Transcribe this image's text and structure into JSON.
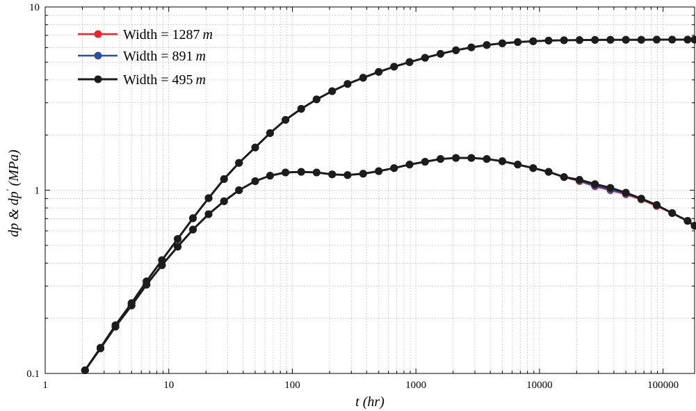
{
  "chart_data": {
    "type": "line",
    "xscale": "log",
    "yscale": "log",
    "xlim": [
      1,
      180000
    ],
    "ylim": [
      0.1,
      10
    ],
    "grid": true,
    "legend_position": "top-left",
    "xlabel_parts": {
      "var": "t",
      "unit": "(hr)"
    },
    "ylabel_parts": {
      "var": "dp & dp",
      "prime": "'",
      "unit": "(MPa)"
    },
    "x_ticks": [
      {
        "value": 1,
        "label": "1"
      },
      {
        "value": 10,
        "label": "10"
      },
      {
        "value": 100,
        "label": "100"
      },
      {
        "value": 1000,
        "label": "1000"
      },
      {
        "value": 10000,
        "label": "10000"
      },
      {
        "value": 100000,
        "label": "100000"
      }
    ],
    "y_ticks": [
      {
        "value": 0.1,
        "label": "0.1"
      },
      {
        "value": 1,
        "label": "1"
      },
      {
        "value": 10,
        "label": "10"
      }
    ],
    "x": [
      2.1,
      2.8,
      3.7,
      5,
      6.6,
      8.8,
      11.8,
      15.7,
      21,
      28,
      37,
      50,
      66,
      88,
      118,
      157,
      210,
      280,
      374,
      500,
      666,
      888,
      1185,
      1580,
      2107,
      2810,
      3747,
      5000,
      6666,
      8888,
      11850,
      15800,
      21070,
      28100,
      37470,
      50000,
      66600,
      88880,
      118500,
      158000,
      180000
    ],
    "series": [
      {
        "name": "Width = 1287",
        "unit_label": "m",
        "color": "#e8262b",
        "pressure": [
          0.104,
          0.138,
          0.183,
          0.242,
          0.318,
          0.415,
          0.542,
          0.703,
          0.905,
          1.15,
          1.41,
          1.71,
          2.05,
          2.42,
          2.78,
          3.13,
          3.47,
          3.8,
          4.11,
          4.42,
          4.72,
          5.0,
          5.28,
          5.55,
          5.8,
          6.02,
          6.2,
          6.33,
          6.43,
          6.5,
          6.55,
          6.58,
          6.6,
          6.61,
          6.62,
          6.62,
          6.62,
          6.63,
          6.63,
          6.63,
          6.63
        ],
        "derivative": [
          0.104,
          0.137,
          0.18,
          0.235,
          0.305,
          0.39,
          0.492,
          0.61,
          0.74,
          0.87,
          1.0,
          1.12,
          1.2,
          1.25,
          1.26,
          1.25,
          1.22,
          1.21,
          1.23,
          1.27,
          1.32,
          1.38,
          1.43,
          1.48,
          1.5,
          1.5,
          1.48,
          1.44,
          1.38,
          1.32,
          1.26,
          1.18,
          1.12,
          1.05,
          1.0,
          0.95,
          0.89,
          0.82,
          0.75,
          0.68,
          0.64
        ]
      },
      {
        "name": "Width = 891",
        "unit_label": "m",
        "color": "#2b4fa3",
        "pressure": [
          0.104,
          0.138,
          0.183,
          0.242,
          0.318,
          0.415,
          0.542,
          0.703,
          0.905,
          1.15,
          1.41,
          1.71,
          2.05,
          2.42,
          2.78,
          3.13,
          3.47,
          3.8,
          4.11,
          4.42,
          4.72,
          5.0,
          5.28,
          5.55,
          5.8,
          6.02,
          6.2,
          6.33,
          6.43,
          6.5,
          6.55,
          6.58,
          6.6,
          6.61,
          6.62,
          6.62,
          6.62,
          6.63,
          6.63,
          6.63,
          6.63
        ],
        "derivative": [
          0.104,
          0.137,
          0.18,
          0.235,
          0.305,
          0.39,
          0.492,
          0.61,
          0.74,
          0.87,
          1.0,
          1.12,
          1.2,
          1.25,
          1.26,
          1.25,
          1.22,
          1.21,
          1.23,
          1.27,
          1.32,
          1.38,
          1.43,
          1.48,
          1.5,
          1.5,
          1.48,
          1.44,
          1.38,
          1.32,
          1.26,
          1.18,
          1.13,
          1.06,
          1.01,
          0.96,
          0.9,
          0.83,
          0.75,
          0.68,
          0.64
        ]
      },
      {
        "name": "Width = 495",
        "unit_label": "m",
        "color": "#1c1c1c",
        "pressure": [
          0.104,
          0.138,
          0.183,
          0.242,
          0.318,
          0.415,
          0.542,
          0.703,
          0.905,
          1.15,
          1.41,
          1.71,
          2.05,
          2.42,
          2.78,
          3.13,
          3.47,
          3.8,
          4.11,
          4.42,
          4.72,
          5.0,
          5.28,
          5.55,
          5.8,
          6.02,
          6.2,
          6.33,
          6.43,
          6.5,
          6.55,
          6.58,
          6.6,
          6.61,
          6.62,
          6.62,
          6.62,
          6.63,
          6.63,
          6.63,
          6.63
        ],
        "derivative": [
          0.104,
          0.137,
          0.18,
          0.235,
          0.305,
          0.39,
          0.492,
          0.61,
          0.74,
          0.87,
          1.0,
          1.12,
          1.2,
          1.25,
          1.26,
          1.25,
          1.22,
          1.21,
          1.23,
          1.27,
          1.32,
          1.38,
          1.43,
          1.48,
          1.5,
          1.5,
          1.48,
          1.44,
          1.38,
          1.32,
          1.26,
          1.18,
          1.14,
          1.08,
          1.03,
          0.97,
          0.9,
          0.83,
          0.75,
          0.68,
          0.64
        ]
      }
    ]
  }
}
